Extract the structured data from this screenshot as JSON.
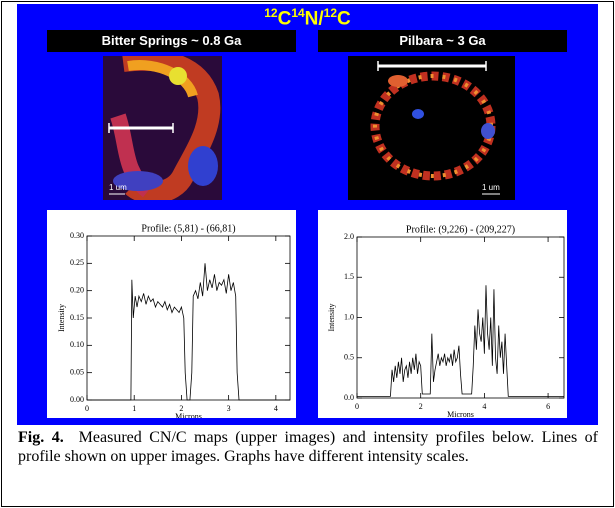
{
  "figure": {
    "title": [
      "12",
      "C",
      "14",
      "N/",
      "12",
      "C"
    ],
    "panels": [
      {
        "header": "Bitter Springs  ~ 0.8 Ga",
        "scale_bar": "1 um",
        "plot": {
          "type": "line",
          "title": "Profile: (5,81) - (66,81)",
          "x_label": "Microns",
          "y_label": "Intensity",
          "x": [
            0,
            0.93,
            0.95,
            0.98,
            1.02,
            1.06,
            1.1,
            1.15,
            1.2,
            1.25,
            1.3,
            1.35,
            1.4,
            1.45,
            1.5,
            1.55,
            1.6,
            1.65,
            1.7,
            1.75,
            1.8,
            1.85,
            1.9,
            1.95,
            2.0,
            2.05,
            2.08,
            2.12,
            2.18,
            2.22,
            2.25,
            2.3,
            2.35,
            2.4,
            2.45,
            2.5,
            2.55,
            2.6,
            2.65,
            2.7,
            2.75,
            2.8,
            2.85,
            2.9,
            2.95,
            3.0,
            3.05,
            3.1,
            3.15,
            3.18,
            3.22,
            4.3
          ],
          "values": [
            0,
            0,
            0.22,
            0.15,
            0.19,
            0.17,
            0.19,
            0.18,
            0.195,
            0.175,
            0.19,
            0.18,
            0.185,
            0.17,
            0.18,
            0.175,
            0.17,
            0.18,
            0.165,
            0.175,
            0.16,
            0.17,
            0.165,
            0.16,
            0.17,
            0.15,
            0.05,
            0,
            0,
            0.05,
            0.19,
            0.2,
            0.185,
            0.215,
            0.19,
            0.25,
            0.2,
            0.22,
            0.205,
            0.23,
            0.2,
            0.215,
            0.21,
            0.22,
            0.195,
            0.23,
            0.2,
            0.215,
            0.19,
            0.05,
            0,
            0
          ],
          "xlim": [
            0,
            4.3
          ],
          "ylim": [
            0,
            0.3
          ],
          "xticks": [
            0,
            1,
            2,
            3,
            4
          ],
          "yticks": [
            {
              "value": 0,
              "label": "0.00"
            },
            {
              "value": 0.05,
              "label": "0.05"
            },
            {
              "value": 0.1,
              "label": "0.10"
            },
            {
              "value": 0.15,
              "label": "0.15"
            },
            {
              "value": 0.2,
              "label": "0.20"
            },
            {
              "value": 0.25,
              "label": "0.25"
            },
            {
              "value": 0.3,
              "label": "0.30"
            }
          ],
          "color": "#000000"
        }
      },
      {
        "header": "Pilbara   ~ 3 Ga",
        "scale_bar": "1 um",
        "plot": {
          "type": "line",
          "title": "Profile: (9,226) - (209,227)",
          "x_label": "Microns",
          "y_label": "Intensity",
          "x": [
            0,
            1.05,
            1.1,
            1.15,
            1.2,
            1.25,
            1.3,
            1.35,
            1.4,
            1.45,
            1.5,
            1.55,
            1.6,
            1.65,
            1.7,
            1.75,
            1.8,
            1.85,
            1.9,
            1.95,
            2.0,
            2.05,
            2.3,
            2.35,
            2.4,
            2.45,
            2.5,
            2.55,
            2.6,
            2.65,
            2.7,
            2.75,
            2.8,
            2.85,
            2.9,
            2.95,
            3.0,
            3.05,
            3.1,
            3.15,
            3.2,
            3.25,
            3.3,
            3.6,
            3.65,
            3.7,
            3.75,
            3.8,
            3.85,
            3.9,
            3.95,
            4.0,
            4.05,
            4.1,
            4.15,
            4.2,
            4.25,
            4.3,
            4.35,
            4.4,
            4.45,
            4.5,
            4.55,
            4.6,
            4.65,
            4.7,
            4.75,
            6.5
          ],
          "values": [
            0.02,
            0.02,
            0.35,
            0.2,
            0.4,
            0.25,
            0.45,
            0.3,
            0.5,
            0.2,
            0.35,
            0.4,
            0.25,
            0.45,
            0.3,
            0.5,
            0.35,
            0.55,
            0.3,
            0.45,
            0.4,
            0.05,
            0.05,
            0.8,
            0.2,
            0.35,
            0.45,
            0.55,
            0.4,
            0.5,
            0.45,
            0.55,
            0.4,
            0.5,
            0.45,
            0.55,
            0.4,
            0.6,
            0.45,
            0.5,
            0.65,
            0.3,
            0.05,
            0.05,
            0.4,
            0.9,
            0.6,
            1.1,
            0.8,
            0.7,
            1.0,
            0.55,
            1.4,
            0.8,
            0.6,
            1.0,
            0.4,
            1.35,
            0.5,
            0.3,
            0.9,
            0.5,
            0.7,
            0.3,
            0.8,
            0.4,
            0.02,
            0.02
          ],
          "xlim": [
            0,
            6.5
          ],
          "ylim": [
            0,
            2.0
          ],
          "xticks": [
            0,
            2,
            4,
            6
          ],
          "yticks": [
            {
              "value": 0,
              "label": "0.0"
            },
            {
              "value": 0.5,
              "label": "0.5"
            },
            {
              "value": 1,
              "label": "1.0"
            },
            {
              "value": 1.5,
              "label": "1.5"
            },
            {
              "value": 2,
              "label": "2.0"
            }
          ],
          "color": "#000000"
        }
      }
    ],
    "caption": {
      "label": "Fig. 4.",
      "text": "Measured CN/C maps (upper images) and intensity profiles below.  Lines of profile shown on upper images.  Graphs have different intensity scales."
    }
  }
}
